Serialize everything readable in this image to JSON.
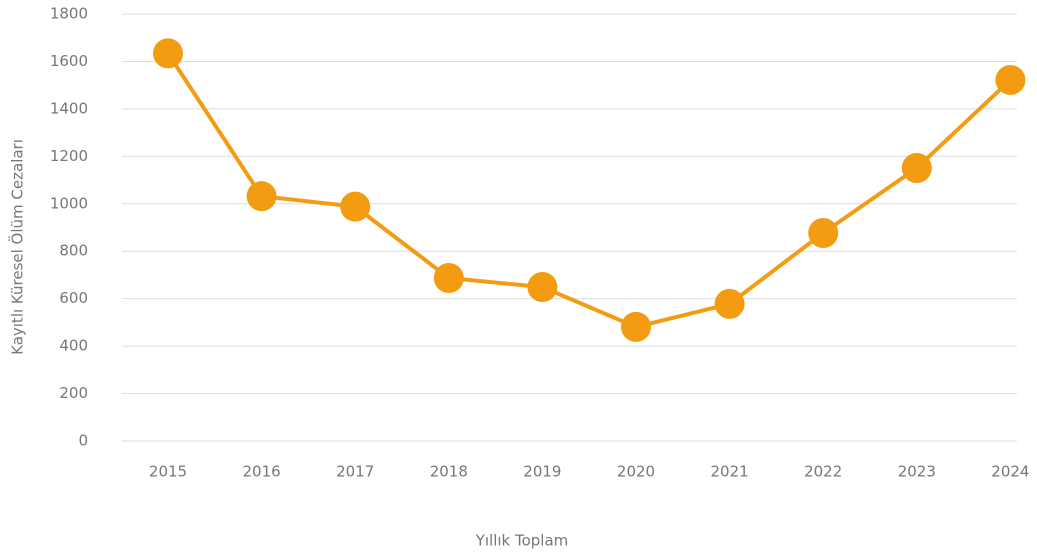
{
  "chart_data": {
    "type": "line",
    "x_label": "Yıllık Toplam",
    "y_label": "Kayıtlı Küresel Ölüm Cezaları",
    "categories": [
      "2015",
      "2016",
      "2017",
      "2018",
      "2019",
      "2020",
      "2021",
      "2022",
      "2023",
      "2024"
    ],
    "series": [
      {
        "name": "Kayıtlı Küresel Ölüm Cezaları",
        "color": "#f39c12",
        "values": [
          1634,
          1032,
          988,
          687,
          649,
          481,
          578,
          877,
          1151,
          1522
        ]
      }
    ],
    "ylim": [
      0,
      1800
    ],
    "yticks": [
      0,
      200,
      400,
      600,
      800,
      1000,
      1200,
      1400,
      1600,
      1800
    ],
    "grid": true
  }
}
